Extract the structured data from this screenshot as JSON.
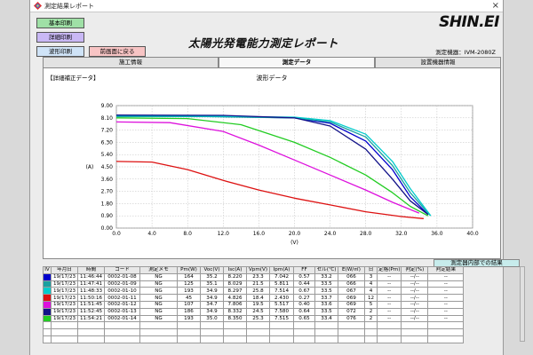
{
  "window": {
    "title": "測定結果レポート",
    "close_glyph": "×"
  },
  "buttons": {
    "basic_print": "基本印刷",
    "detail_print": "詳細印刷",
    "wave_print": "波形印刷",
    "back": "前画面に戻る"
  },
  "header": {
    "report_title": "太陽光発電能力測定レポート",
    "brand": "SHIN.EI",
    "device": "測定機器：IVM-2080Z"
  },
  "tabs": [
    {
      "label": "施工情報",
      "active": false
    },
    {
      "label": "測定データ",
      "active": true
    },
    {
      "label": "設置機器情報",
      "active": false
    }
  ],
  "panel": {
    "section_label": "【詳細補正データ】"
  },
  "chart_data": {
    "type": "line",
    "title": "波形データ",
    "xlabel": "(V)",
    "ylabel": "(A)",
    "xlim": [
      0,
      40
    ],
    "ylim": [
      0,
      9
    ],
    "x_ticks": [
      "0.0",
      "4.0",
      "8.0",
      "12.0",
      "16.0",
      "20.0",
      "24.0",
      "28.0",
      "32.0",
      "36.0",
      "40.0"
    ],
    "y_ticks": [
      "0.00",
      "0.90",
      "1.80",
      "2.70",
      "3.60",
      "4.50",
      "5.40",
      "6.30",
      "7.20",
      "8.10",
      "9.00"
    ],
    "grid": true,
    "series": [
      {
        "color": "#0000cc",
        "points": [
          [
            0,
            8.22
          ],
          [
            10,
            8.21
          ],
          [
            20,
            8.1
          ],
          [
            24,
            7.7
          ],
          [
            28,
            6.4
          ],
          [
            31,
            4.3
          ],
          [
            33,
            2.3
          ],
          [
            35,
            1.0
          ]
        ]
      },
      {
        "color": "#1aa0a0",
        "points": [
          [
            0,
            8.2
          ],
          [
            10,
            8.19
          ],
          [
            20,
            8.1
          ],
          [
            24,
            7.8
          ],
          [
            28,
            6.7
          ],
          [
            31,
            4.6
          ],
          [
            33,
            2.6
          ],
          [
            35.2,
            0.95
          ]
        ]
      },
      {
        "color": "#00cccc",
        "points": [
          [
            0,
            8.25
          ],
          [
            10,
            8.22
          ],
          [
            20,
            8.15
          ],
          [
            24,
            7.9
          ],
          [
            28,
            6.9
          ],
          [
            31,
            4.9
          ],
          [
            33,
            2.9
          ],
          [
            35.3,
            0.9
          ]
        ]
      },
      {
        "color": "#111188",
        "points": [
          [
            0,
            8.3
          ],
          [
            12,
            8.28
          ],
          [
            20,
            8.1
          ],
          [
            24,
            7.5
          ],
          [
            28,
            5.8
          ],
          [
            31,
            3.6
          ],
          [
            33,
            2.0
          ],
          [
            35,
            1.0
          ]
        ]
      },
      {
        "color": "#22cc22",
        "points": [
          [
            0,
            8.1
          ],
          [
            8,
            8.05
          ],
          [
            14,
            7.6
          ],
          [
            20,
            6.3
          ],
          [
            24,
            5.2
          ],
          [
            28,
            3.9
          ],
          [
            31,
            2.6
          ],
          [
            33,
            1.6
          ],
          [
            35,
            0.9
          ]
        ]
      },
      {
        "color": "#dd11dd",
        "points": [
          [
            0,
            7.8
          ],
          [
            6,
            7.75
          ],
          [
            12,
            7.1
          ],
          [
            16,
            6.1
          ],
          [
            20,
            5.0
          ],
          [
            24,
            3.9
          ],
          [
            28,
            2.8
          ],
          [
            31,
            1.9
          ],
          [
            34,
            1.1
          ]
        ]
      },
      {
        "color": "#dd1111",
        "points": [
          [
            0,
            4.9
          ],
          [
            4,
            4.85
          ],
          [
            8,
            4.3
          ],
          [
            12,
            3.5
          ],
          [
            16,
            2.8
          ],
          [
            20,
            2.2
          ],
          [
            24,
            1.7
          ],
          [
            28,
            1.2
          ],
          [
            32,
            0.85
          ],
          [
            34.5,
            0.7
          ]
        ]
      }
    ]
  },
  "table": {
    "result_header": "測定器内部での結果",
    "columns": [
      "IV",
      "年月日",
      "時間",
      "コード",
      "測定メモ",
      "Pm(W)",
      "Voc(V)",
      "Isc(A)",
      "Vpm(V)",
      "Ipm(A)",
      "FF",
      "セル(℃)",
      "E(W/㎡)",
      "日",
      "定格(Pm)",
      "判定(%)",
      "判定結果"
    ],
    "rows": [
      {
        "color": "#0000cc",
        "cells": [
          "",
          "19/17/23",
          "11:46:44",
          "0002-01-08",
          "NG",
          "164",
          "35.2",
          "8.220",
          "23.3",
          "7.042",
          "0.57",
          "33.2",
          "066",
          "3",
          "--",
          "--/--",
          "--"
        ]
      },
      {
        "color": "#1aa0a0",
        "cells": [
          "",
          "19/17/23",
          "11:47:41",
          "0002-01-09",
          "NG",
          "125",
          "35.1",
          "8.029",
          "21.5",
          "5.811",
          "0.44",
          "33.5",
          "066",
          "4",
          "--",
          "--/--",
          "--"
        ]
      },
      {
        "color": "#00cccc",
        "cells": [
          "",
          "19/17/23",
          "11:48:33",
          "0002-01-10",
          "NG",
          "193",
          "34.9",
          "8.297",
          "25.8",
          "7.514",
          "0.67",
          "33.5",
          "067",
          "4",
          "--",
          "--/--",
          "--"
        ]
      },
      {
        "color": "#dd1111",
        "cells": [
          "",
          "19/17/23",
          "11:50:16",
          "0002-01-11",
          "NG",
          "45",
          "34.9",
          "4.826",
          "18.4",
          "2.430",
          "0.27",
          "33.7",
          "069",
          "12",
          "--",
          "--/--",
          "--"
        ]
      },
      {
        "color": "#dd11dd",
        "cells": [
          "",
          "19/17/23",
          "11:51:45",
          "0002-01-12",
          "NG",
          "107",
          "34.7",
          "7.806",
          "19.5",
          "5.517",
          "0.40",
          "33.6",
          "069",
          "5",
          "--",
          "--/--",
          "--"
        ]
      },
      {
        "color": "#111188",
        "cells": [
          "",
          "19/17/23",
          "11:52:45",
          "0002-01-13",
          "NG",
          "186",
          "34.9",
          "8.332",
          "24.5",
          "7.580",
          "0.64",
          "33.5",
          "072",
          "2",
          "--",
          "--/--",
          "--"
        ]
      },
      {
        "color": "#22cc22",
        "cells": [
          "",
          "19/17/23",
          "11:54:21",
          "0002-01-14",
          "NG",
          "193",
          "35.0",
          "8.350",
          "25.3",
          "7.515",
          "0.65",
          "33.4",
          "076",
          "2",
          "--",
          "--/--",
          "--"
        ]
      },
      {
        "color": "",
        "cells": [
          "",
          "",
          "",
          "",
          "",
          "",
          "",
          "",
          "",
          "",
          "",
          "",
          "",
          "",
          "",
          "",
          ""
        ]
      },
      {
        "color": "",
        "cells": [
          "",
          "",
          "",
          "",
          "",
          "",
          "",
          "",
          "",
          "",
          "",
          "",
          "",
          "",
          "",
          "",
          ""
        ]
      },
      {
        "color": "",
        "cells": [
          "",
          "",
          "",
          "",
          "",
          "",
          "",
          "",
          "",
          "",
          "",
          "",
          "",
          "",
          "",
          "",
          ""
        ]
      }
    ]
  }
}
